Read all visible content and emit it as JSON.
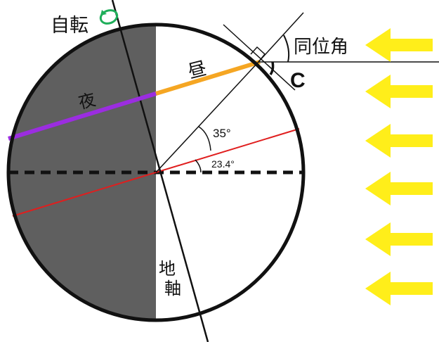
{
  "labels": {
    "rotation": "自転",
    "day": "昼",
    "night": "夜",
    "corresponding_angle": "同位角",
    "angle_c": "C",
    "angle_35": "35°",
    "angle_23": "23.4°",
    "axis_top": "地",
    "axis_bottom": "軸"
  },
  "colors": {
    "night_fill": "#5f5f5f",
    "day_line": "#f5a623",
    "night_line": "#9b2de0",
    "tropic_line": "#e01e1e",
    "equator": "#111111",
    "sunlight_arrow": "#ffee1a",
    "rotation_arrow": "#1fae5a"
  },
  "icons": {
    "rotation": "rotation-arrow-icon",
    "sunlight": "sunlight-arrow-icon"
  },
  "sunlight_arrow_count": 6
}
